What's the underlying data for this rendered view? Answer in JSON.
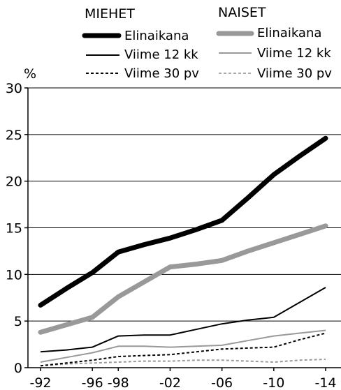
{
  "chart_data": {
    "type": "line",
    "ylabel": "%",
    "ylim": [
      0,
      30
    ],
    "yticks": [
      0,
      5,
      10,
      15,
      20,
      25,
      30
    ],
    "xlim": [
      1992,
      2014
    ],
    "xticks": [
      {
        "value": 1992,
        "label": "-92"
      },
      {
        "value": 1996,
        "label": "-96"
      },
      {
        "value": 1998,
        "label": "-98"
      },
      {
        "value": 2002,
        "label": "-02"
      },
      {
        "value": 2006,
        "label": "-06"
      },
      {
        "value": 2010,
        "label": "-10"
      },
      {
        "value": 2014,
        "label": "-14"
      }
    ],
    "grid": "horizontal",
    "legend": {
      "position": "top",
      "groups": [
        {
          "title": "MIEHET",
          "items": [
            "Elinaikana",
            "Viime 12 kk",
            "Viime 30 pv"
          ]
        },
        {
          "title": "NAISET",
          "items": [
            "Elinaikana",
            "Viime 12 kk",
            "Viime 30 pv"
          ]
        }
      ]
    },
    "x": [
      1992,
      1994,
      1996,
      1998,
      2000,
      2002,
      2004,
      2006,
      2008,
      2010,
      2012,
      2014
    ],
    "series": [
      {
        "group": "MIEHET",
        "name": "Elinaikana",
        "color": "#000000",
        "style": "solid-thick",
        "values": [
          6.7,
          8.5,
          10.2,
          12.4,
          13.2,
          13.9,
          14.8,
          15.8,
          18.2,
          20.7,
          22.7,
          24.6
        ]
      },
      {
        "group": "MIEHET",
        "name": "Viime 12 kk",
        "color": "#000000",
        "style": "solid-thin",
        "values": [
          1.7,
          1.9,
          2.2,
          3.4,
          3.5,
          3.5,
          4.1,
          4.7,
          5.1,
          5.4,
          7.0,
          8.6
        ]
      },
      {
        "group": "MIEHET",
        "name": "Viime 30 pv",
        "color": "#000000",
        "style": "dashed",
        "values": [
          0.2,
          0.5,
          0.8,
          1.2,
          1.3,
          1.4,
          1.7,
          2.0,
          2.1,
          2.2,
          3.0,
          3.7
        ]
      },
      {
        "group": "NAISET",
        "name": "Elinaikana",
        "color": "#999999",
        "style": "solid-thick",
        "values": [
          3.8,
          4.6,
          5.4,
          7.6,
          9.2,
          10.8,
          11.1,
          11.5,
          12.5,
          13.4,
          14.3,
          15.2
        ]
      },
      {
        "group": "NAISET",
        "name": "Viime 12 kk",
        "color": "#999999",
        "style": "solid-thin",
        "values": [
          0.6,
          1.1,
          1.6,
          2.3,
          2.3,
          2.2,
          2.3,
          2.4,
          2.9,
          3.4,
          3.7,
          4.0
        ]
      },
      {
        "group": "NAISET",
        "name": "Viime 30 pv",
        "color": "#999999",
        "style": "dashed",
        "values": [
          0.2,
          0.4,
          0.5,
          0.6,
          0.7,
          0.7,
          0.8,
          0.8,
          0.7,
          0.6,
          0.8,
          0.9
        ]
      }
    ]
  }
}
